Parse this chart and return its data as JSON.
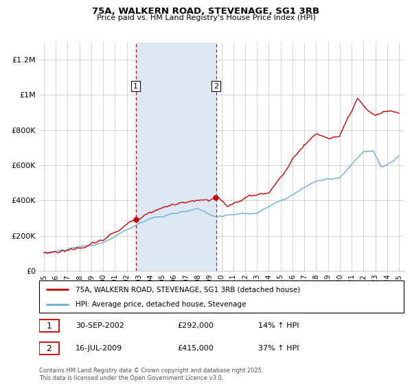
{
  "title1": "75A, WALKERN ROAD, STEVENAGE, SG1 3RB",
  "title2": "Price paid vs. HM Land Registry's House Price Index (HPI)",
  "legend_line1": "75A, WALKERN ROAD, STEVENAGE, SG1 3RB (detached house)",
  "legend_line2": "HPI: Average price, detached house, Stevenage",
  "sale1_date": "30-SEP-2002",
  "sale1_price": "£292,000",
  "sale1_hpi": "14% ↑ HPI",
  "sale2_date": "16-JUL-2009",
  "sale2_price": "£415,000",
  "sale2_hpi": "37% ↑ HPI",
  "footer": "Contains HM Land Registry data © Crown copyright and database right 2025.\nThis data is licensed under the Open Government Licence v3.0.",
  "red_color": "#cc0000",
  "blue_color": "#6baed6",
  "shade_color": "#dce9f5",
  "vline_color": "#cc0000",
  "grid_color": "#cccccc",
  "bg_color": "#ffffff",
  "sale1_x": 2002.75,
  "sale2_x": 2009.54,
  "ylim_top": 1300000,
  "ylabel_ticks": [
    0,
    200000,
    400000,
    600000,
    800000,
    1000000,
    1200000
  ],
  "ylabel_labels": [
    "£0",
    "£200K",
    "£400K",
    "£600K",
    "£800K",
    "£1M",
    "£1.2M"
  ],
  "xtick_years": [
    1995,
    1996,
    1997,
    1998,
    1999,
    2000,
    2001,
    2002,
    2003,
    2004,
    2005,
    2006,
    2007,
    2008,
    2009,
    2010,
    2011,
    2012,
    2013,
    2014,
    2015,
    2016,
    2017,
    2018,
    2019,
    2020,
    2021,
    2022,
    2023,
    2024,
    2025
  ]
}
